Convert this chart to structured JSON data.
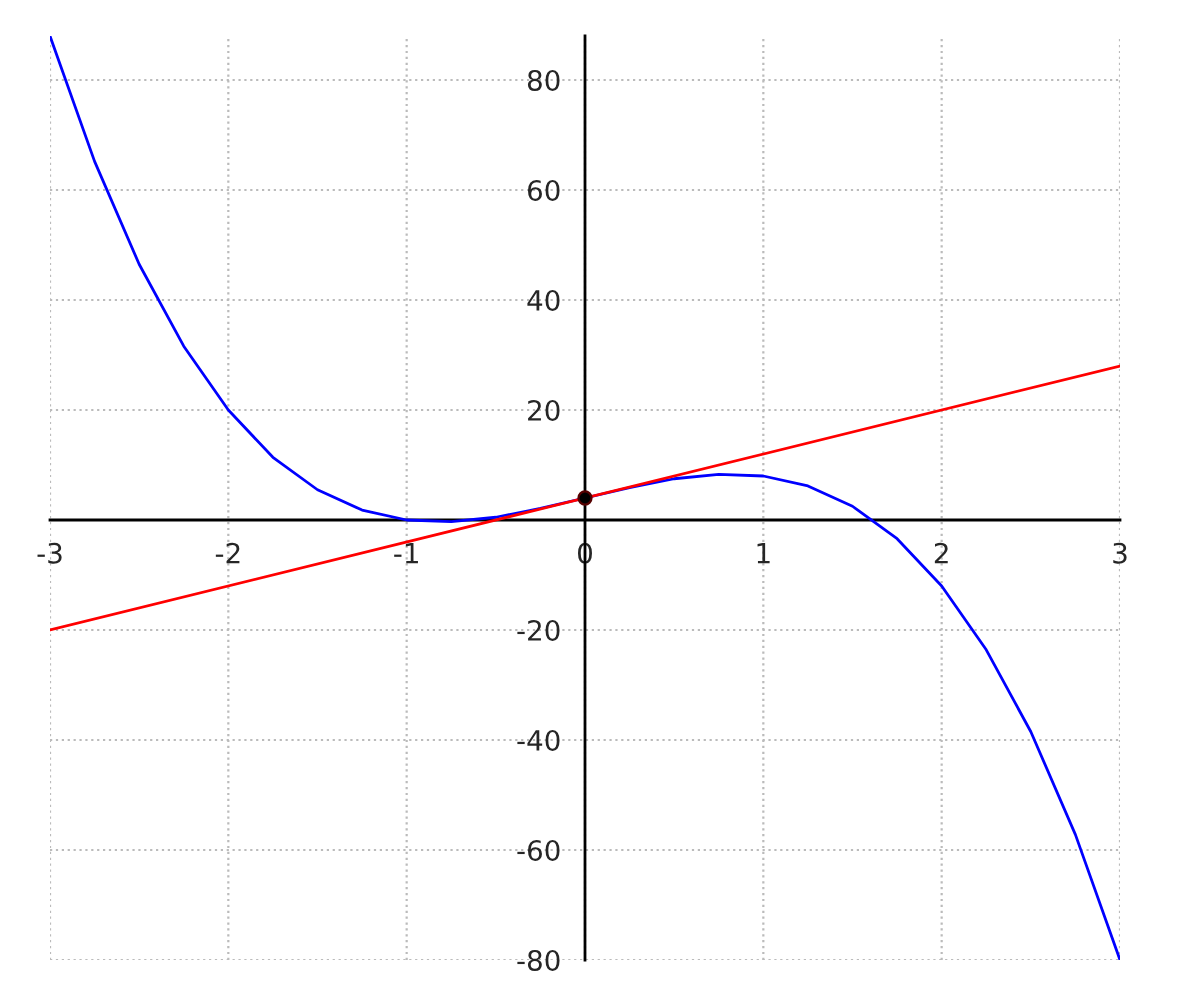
{
  "chart_data": {
    "type": "line",
    "xlim": [
      -3,
      3
    ],
    "ylim": [
      -80,
      88
    ],
    "xticks": [
      -3,
      -2,
      -1,
      0,
      1,
      2,
      3
    ],
    "yticks": [
      -80,
      -60,
      -40,
      -20,
      20,
      40,
      60,
      80
    ],
    "grid": true,
    "series": [
      {
        "color": "#0000ff",
        "x": [
          -3,
          -2.75,
          -2.5,
          -2.25,
          -2,
          -1.75,
          -1.5,
          -1.25,
          -1,
          -0.75,
          -0.5,
          -0.25,
          0,
          0.25,
          0.5,
          0.75,
          1,
          1.25,
          1.5,
          1.75,
          2,
          2.25,
          2.5,
          2.75,
          3
        ],
        "values": [
          88,
          65.2,
          46.5,
          31.6,
          20,
          11.4,
          5.5,
          1.8,
          0,
          -0.3,
          0.5,
          2.1,
          4,
          5.9,
          7.5,
          8.3,
          8,
          6.2,
          2.5,
          -3.4,
          -12,
          -23.6,
          -38.5,
          -57.2,
          -80
        ]
      },
      {
        "color": "#ff0000",
        "x": [
          -3,
          3
        ],
        "values": [
          -20,
          28
        ]
      },
      {
        "type": "scatter",
        "color": "#000000",
        "x": [
          0
        ],
        "values": [
          4
        ]
      }
    ]
  }
}
